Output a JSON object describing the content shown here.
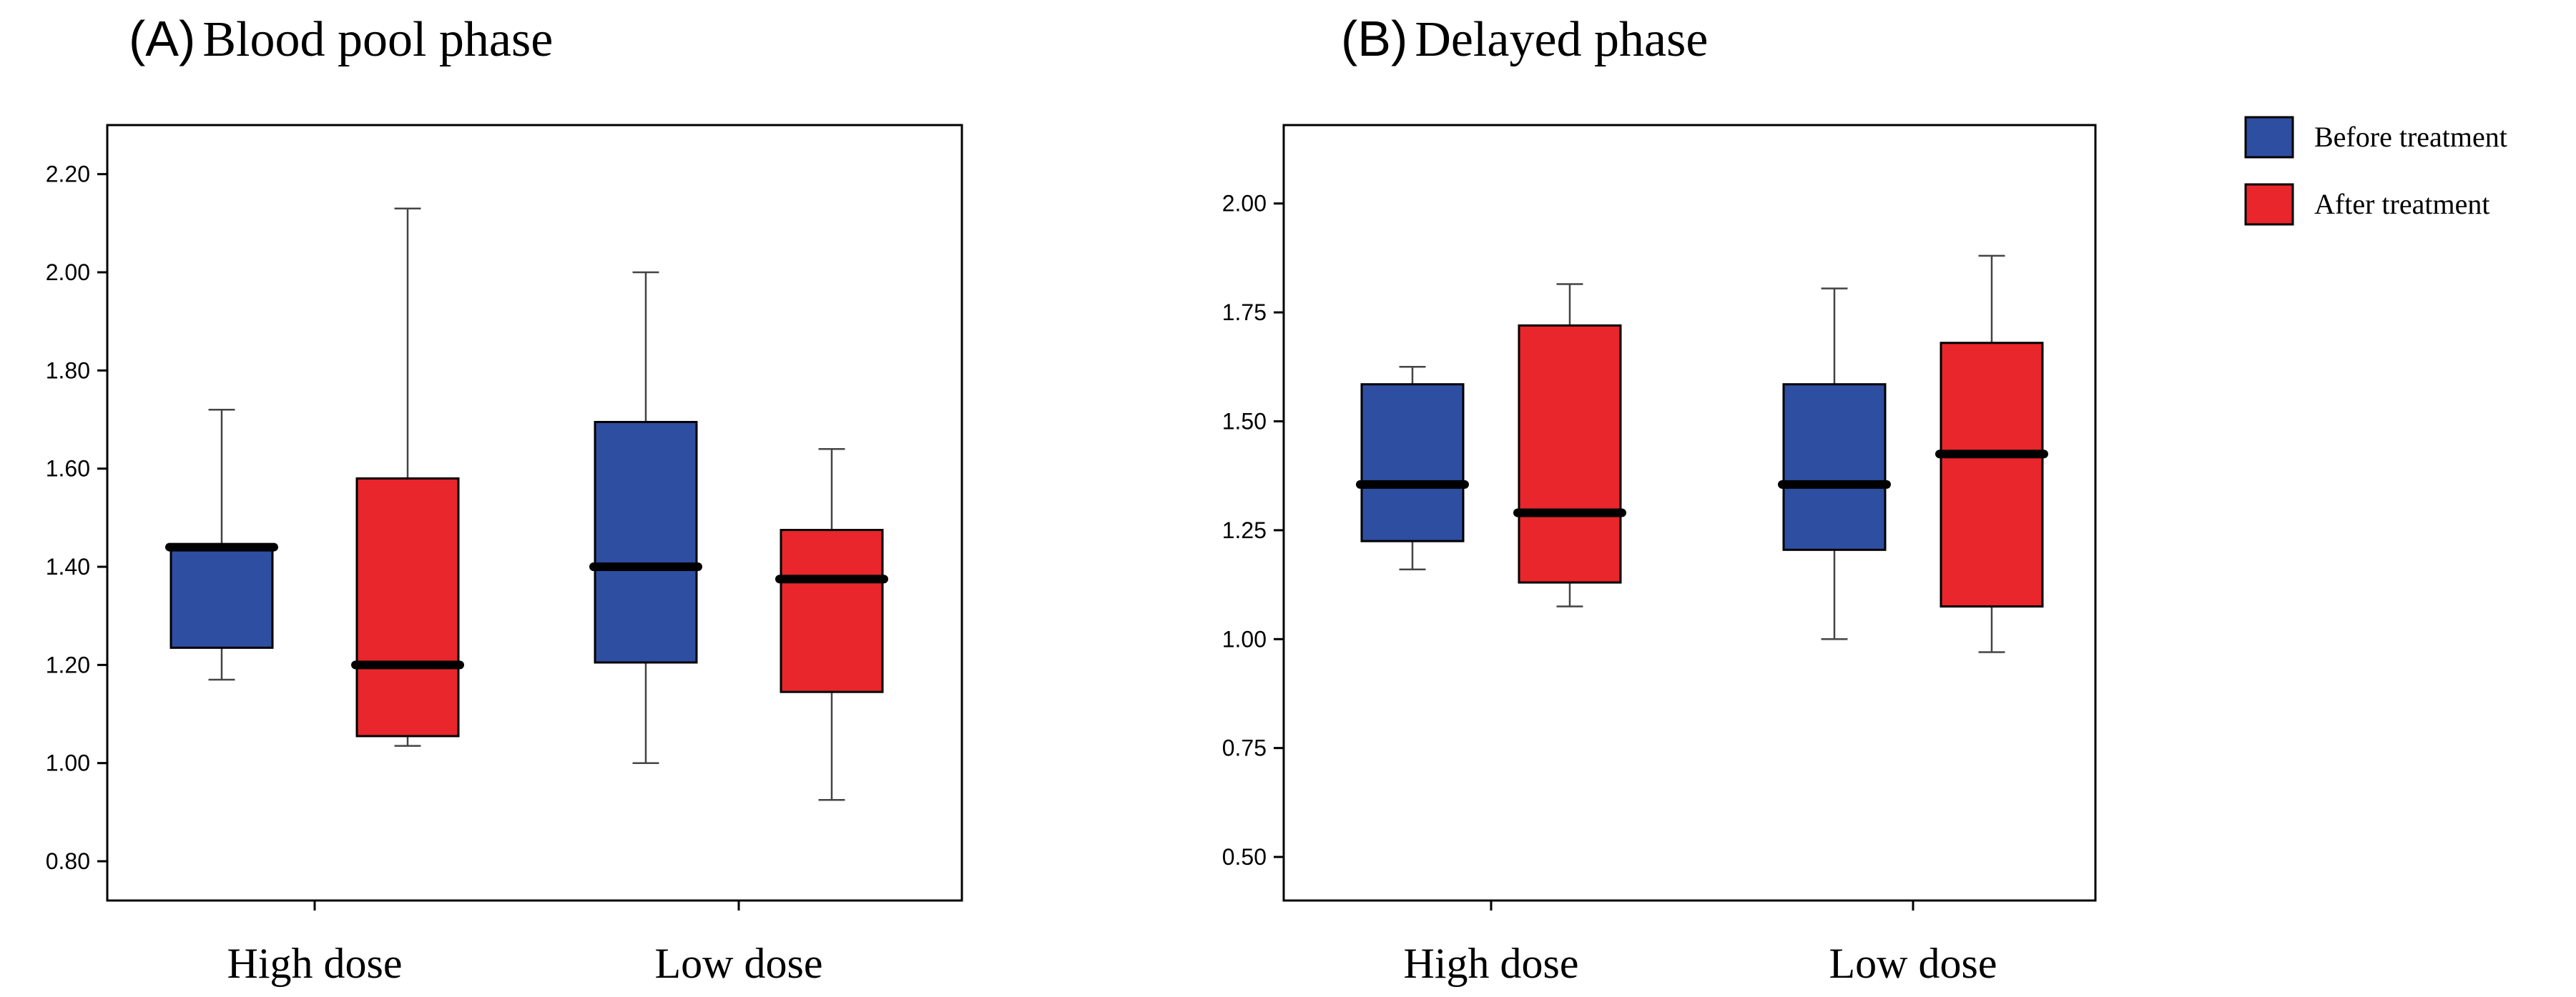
{
  "legend": {
    "entries": [
      {
        "label": "Before treatment",
        "color": "#2E4EA2"
      },
      {
        "label": "After treatment",
        "color": "#E8262B"
      }
    ]
  },
  "chart_data": [
    {
      "type": "box",
      "panel_letter": "(A)",
      "title": "Blood pool phase",
      "xlabel": "",
      "ylabel": "",
      "ylim": [
        0.72,
        2.3
      ],
      "yticks": [
        0.8,
        1.0,
        1.2,
        1.4,
        1.6,
        1.8,
        2.0,
        2.2
      ],
      "ytick_labels": [
        "0.80",
        "1.00",
        "1.20",
        "1.40",
        "1.60",
        "1.80",
        "2.00",
        "2.20"
      ],
      "categories": [
        "High dose",
        "Low dose"
      ],
      "series": [
        {
          "name": "Before treatment",
          "color": "#2E4EA2",
          "boxes": [
            {
              "category": "High dose",
              "min": 1.17,
              "q1": 1.235,
              "median": 1.44,
              "q3": 1.44,
              "max": 1.72
            },
            {
              "category": "Low dose",
              "min": 1.0,
              "q1": 1.205,
              "median": 1.4,
              "q3": 1.695,
              "max": 2.0
            }
          ]
        },
        {
          "name": "After treatment",
          "color": "#E8262B",
          "boxes": [
            {
              "category": "High dose",
              "min": 1.035,
              "q1": 1.055,
              "median": 1.2,
              "q3": 1.58,
              "max": 2.13
            },
            {
              "category": "Low dose",
              "min": 0.925,
              "q1": 1.145,
              "median": 1.375,
              "q3": 1.475,
              "max": 1.64
            }
          ]
        }
      ]
    },
    {
      "type": "box",
      "panel_letter": "(B)",
      "title": "Delayed phase",
      "xlabel": "",
      "ylabel": "",
      "ylim": [
        0.4,
        2.18
      ],
      "yticks": [
        0.5,
        0.75,
        1.0,
        1.25,
        1.5,
        1.75,
        2.0
      ],
      "ytick_labels": [
        "0.50",
        "0.75",
        "1.00",
        "1.25",
        "1.50",
        "1.75",
        "2.00"
      ],
      "categories": [
        "High dose",
        "Low dose"
      ],
      "series": [
        {
          "name": "Before treatment",
          "color": "#2E4EA2",
          "boxes": [
            {
              "category": "High dose",
              "min": 1.16,
              "q1": 1.225,
              "median": 1.355,
              "q3": 1.585,
              "max": 1.625
            },
            {
              "category": "Low dose",
              "min": 1.0,
              "q1": 1.205,
              "median": 1.355,
              "q3": 1.585,
              "max": 1.805
            }
          ]
        },
        {
          "name": "After treatment",
          "color": "#E8262B",
          "boxes": [
            {
              "category": "High dose",
              "min": 1.075,
              "q1": 1.13,
              "median": 1.29,
              "q3": 1.72,
              "max": 1.815
            },
            {
              "category": "Low dose",
              "min": 0.97,
              "q1": 1.075,
              "median": 1.425,
              "q3": 1.68,
              "max": 1.88
            }
          ]
        }
      ]
    }
  ]
}
